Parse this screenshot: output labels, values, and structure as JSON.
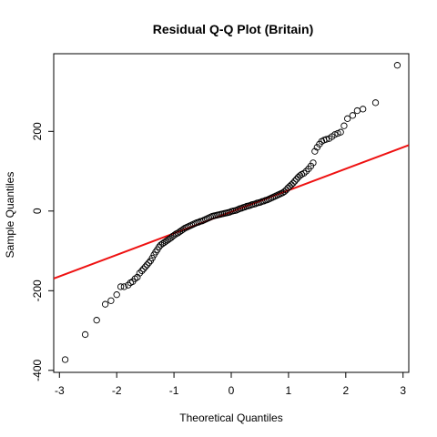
{
  "chart_data": {
    "type": "scatter",
    "title": "Residual Q-Q Plot (Britain)",
    "xlabel": "Theoretical Quantiles",
    "ylabel": "Sample Quantiles",
    "xlim": [
      -3.1,
      3.1
    ],
    "ylim": [
      -405,
      395
    ],
    "x_ticks": [
      -3,
      -2,
      -1,
      0,
      1,
      2,
      3
    ],
    "y_ticks": [
      -400,
      -200,
      0,
      200
    ],
    "grid": false,
    "legend": "none",
    "point_color": "#000000",
    "line_color": "#ee1111",
    "reference_line": {
      "intercept": -2,
      "slope": 54
    },
    "points": [
      [
        -2.9,
        -373
      ],
      [
        -2.55,
        -310
      ],
      [
        -2.35,
        -274
      ],
      [
        -2.2,
        -234
      ],
      [
        -2.1,
        -225
      ],
      [
        -2.0,
        -210
      ],
      [
        -1.93,
        -190
      ],
      [
        -1.87,
        -190
      ],
      [
        -1.8,
        -186
      ],
      [
        -1.76,
        -180
      ],
      [
        -1.72,
        -177
      ],
      [
        -1.68,
        -170
      ],
      [
        -1.64,
        -166
      ],
      [
        -1.6,
        -156
      ],
      [
        -1.56,
        -150
      ],
      [
        -1.53,
        -145
      ],
      [
        -1.5,
        -140
      ],
      [
        -1.47,
        -135
      ],
      [
        -1.44,
        -130
      ],
      [
        -1.41,
        -125
      ],
      [
        -1.38,
        -118
      ],
      [
        -1.35,
        -110
      ],
      [
        -1.32,
        -103
      ],
      [
        -1.29,
        -97
      ],
      [
        -1.26,
        -90
      ],
      [
        -1.23,
        -85
      ],
      [
        -1.2,
        -82
      ],
      [
        -1.17,
        -79
      ],
      [
        -1.14,
        -76
      ],
      [
        -1.11,
        -73
      ],
      [
        -1.08,
        -70
      ],
      [
        -1.05,
        -67
      ],
      [
        -1.02,
        -63
      ],
      [
        -0.99,
        -60
      ],
      [
        -0.96,
        -57
      ],
      [
        -0.93,
        -55
      ],
      [
        -0.9,
        -52
      ],
      [
        -0.87,
        -49
      ],
      [
        -0.84,
        -46
      ],
      [
        -0.81,
        -43
      ],
      [
        -0.78,
        -41
      ],
      [
        -0.75,
        -39
      ],
      [
        -0.72,
        -37
      ],
      [
        -0.69,
        -35
      ],
      [
        -0.66,
        -33
      ],
      [
        -0.63,
        -31
      ],
      [
        -0.6,
        -29
      ],
      [
        -0.57,
        -28
      ],
      [
        -0.54,
        -26
      ],
      [
        -0.51,
        -25
      ],
      [
        -0.48,
        -23
      ],
      [
        -0.45,
        -21
      ],
      [
        -0.42,
        -19
      ],
      [
        -0.39,
        -17
      ],
      [
        -0.36,
        -15
      ],
      [
        -0.33,
        -13
      ],
      [
        -0.3,
        -12
      ],
      [
        -0.27,
        -11
      ],
      [
        -0.24,
        -10
      ],
      [
        -0.21,
        -9
      ],
      [
        -0.18,
        -8
      ],
      [
        -0.15,
        -7
      ],
      [
        -0.12,
        -6
      ],
      [
        -0.09,
        -5
      ],
      [
        -0.06,
        -4
      ],
      [
        -0.03,
        -3
      ],
      [
        0.0,
        -1
      ],
      [
        0.03,
        0
      ],
      [
        0.06,
        1
      ],
      [
        0.09,
        2
      ],
      [
        0.12,
        4
      ],
      [
        0.15,
        6
      ],
      [
        0.18,
        7
      ],
      [
        0.21,
        9
      ],
      [
        0.24,
        10
      ],
      [
        0.27,
        12
      ],
      [
        0.3,
        13
      ],
      [
        0.33,
        14
      ],
      [
        0.36,
        16
      ],
      [
        0.39,
        17
      ],
      [
        0.42,
        18
      ],
      [
        0.45,
        20
      ],
      [
        0.48,
        21
      ],
      [
        0.51,
        22
      ],
      [
        0.54,
        24
      ],
      [
        0.57,
        25
      ],
      [
        0.6,
        27
      ],
      [
        0.63,
        28
      ],
      [
        0.66,
        30
      ],
      [
        0.69,
        32
      ],
      [
        0.72,
        34
      ],
      [
        0.75,
        36
      ],
      [
        0.78,
        38
      ],
      [
        0.81,
        40
      ],
      [
        0.84,
        42
      ],
      [
        0.87,
        44
      ],
      [
        0.9,
        46
      ],
      [
        0.93,
        49
      ],
      [
        0.96,
        53
      ],
      [
        0.99,
        58
      ],
      [
        1.02,
        62
      ],
      [
        1.05,
        66
      ],
      [
        1.08,
        70
      ],
      [
        1.11,
        75
      ],
      [
        1.14,
        80
      ],
      [
        1.17,
        85
      ],
      [
        1.2,
        89
      ],
      [
        1.23,
        92
      ],
      [
        1.27,
        95
      ],
      [
        1.31,
        100
      ],
      [
        1.35,
        106
      ],
      [
        1.39,
        113
      ],
      [
        1.43,
        121
      ],
      [
        1.46,
        150
      ],
      [
        1.5,
        160
      ],
      [
        1.54,
        168
      ],
      [
        1.58,
        175
      ],
      [
        1.62,
        178
      ],
      [
        1.66,
        180
      ],
      [
        1.71,
        182
      ],
      [
        1.76,
        187
      ],
      [
        1.81,
        192
      ],
      [
        1.86,
        195
      ],
      [
        1.91,
        198
      ],
      [
        1.97,
        214
      ],
      [
        2.03,
        232
      ],
      [
        2.12,
        240
      ],
      [
        2.2,
        252
      ],
      [
        2.3,
        256
      ],
      [
        2.52,
        272
      ],
      [
        2.9,
        366
      ]
    ]
  }
}
